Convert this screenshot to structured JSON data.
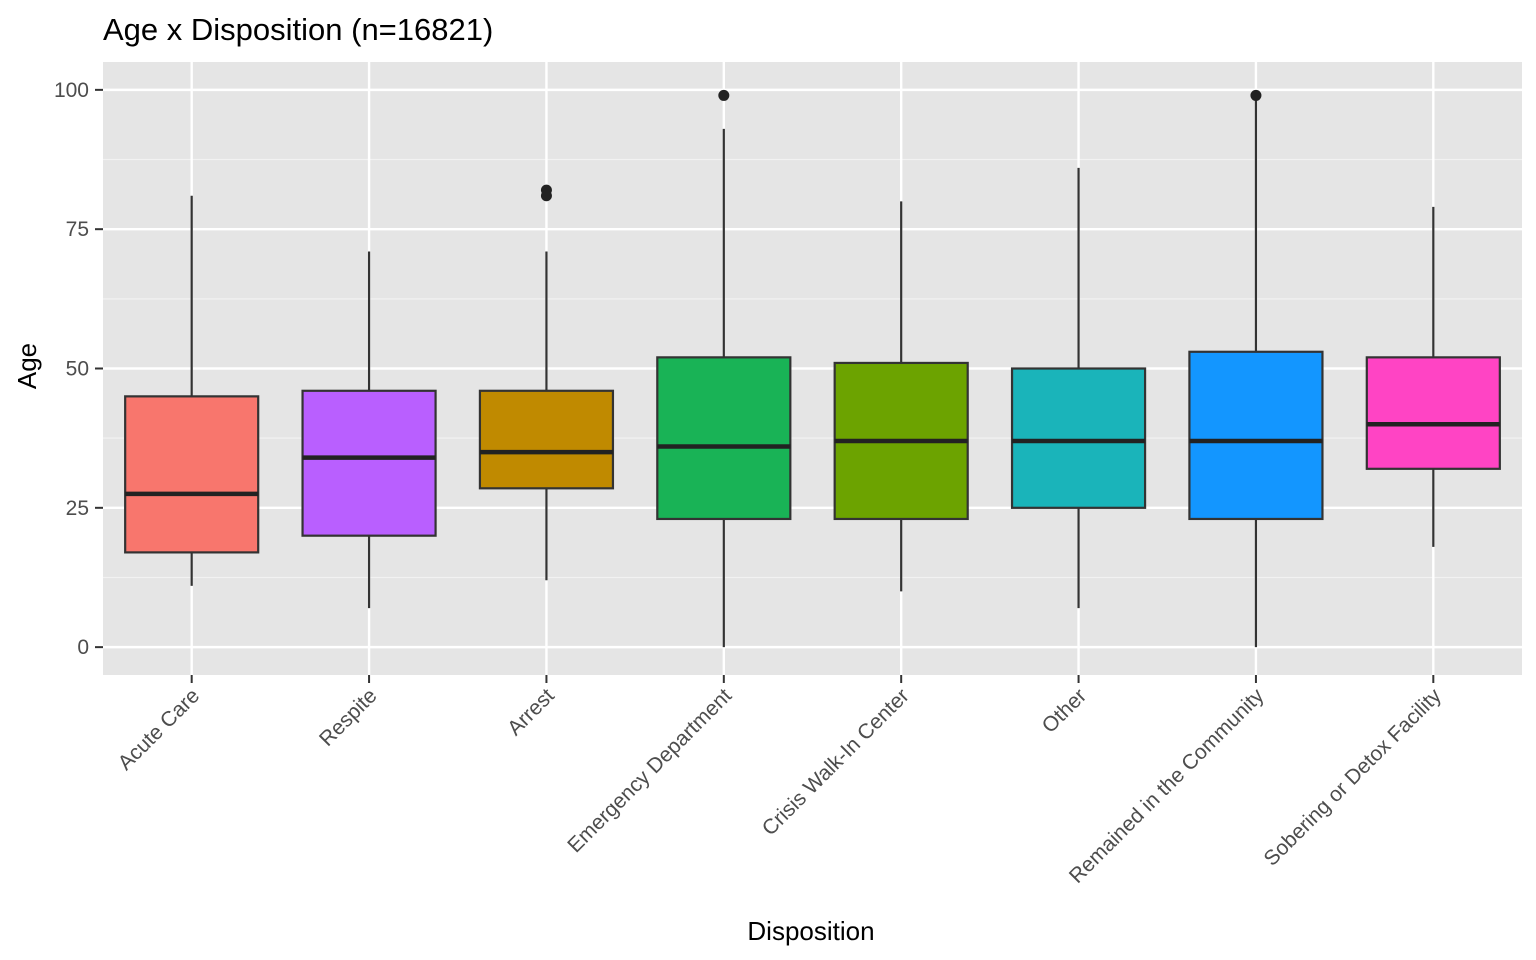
{
  "chart_data": {
    "type": "boxplot",
    "title": "Age x Disposition (n=16821)",
    "xlabel": "Disposition",
    "ylabel": "Age",
    "ylim": [
      -5,
      105
    ],
    "y_ticks": [
      0,
      25,
      50,
      75,
      100
    ],
    "grid": true,
    "legend": "none",
    "categories": [
      "Acute Care",
      "Respite",
      "Arrest",
      "Emergency Department",
      "Crisis Walk-In Center",
      "Other",
      "Remained in the Community",
      "Sobering or Detox Facility"
    ],
    "boxes": [
      {
        "name": "Acute Care",
        "color": "#F8766D",
        "whisker_low": 11,
        "q1": 17,
        "median": 27.5,
        "q3": 45,
        "whisker_high": 81,
        "outliers": []
      },
      {
        "name": "Respite",
        "color": "#B95FFF",
        "whisker_low": 7,
        "q1": 20,
        "median": 34,
        "q3": 46,
        "whisker_high": 71,
        "outliers": []
      },
      {
        "name": "Arrest",
        "color": "#C08A00",
        "whisker_low": 12,
        "q1": 28.5,
        "median": 35,
        "q3": 46,
        "whisker_high": 71,
        "outliers": [
          81,
          82
        ]
      },
      {
        "name": "Emergency Department",
        "color": "#19B356",
        "whisker_low": 0,
        "q1": 23,
        "median": 36,
        "q3": 52,
        "whisker_high": 93,
        "outliers": [
          99
        ]
      },
      {
        "name": "Crisis Walk-In Center",
        "color": "#6CA300",
        "whisker_low": 10,
        "q1": 23,
        "median": 37,
        "q3": 51,
        "whisker_high": 80,
        "outliers": []
      },
      {
        "name": "Other",
        "color": "#1AB4BA",
        "whisker_low": 7,
        "q1": 25,
        "median": 37,
        "q3": 50,
        "whisker_high": 86,
        "outliers": []
      },
      {
        "name": "Remained in the Community",
        "color": "#1396FF",
        "whisker_low": 0,
        "q1": 23,
        "median": 37,
        "q3": 53,
        "whisker_high": 99,
        "outliers": [
          99
        ]
      },
      {
        "name": "Sobering or Detox Facility",
        "color": "#FF44C4",
        "whisker_low": 18,
        "q1": 32,
        "median": 40,
        "q3": 52,
        "whisker_high": 79,
        "outliers": []
      }
    ]
  }
}
